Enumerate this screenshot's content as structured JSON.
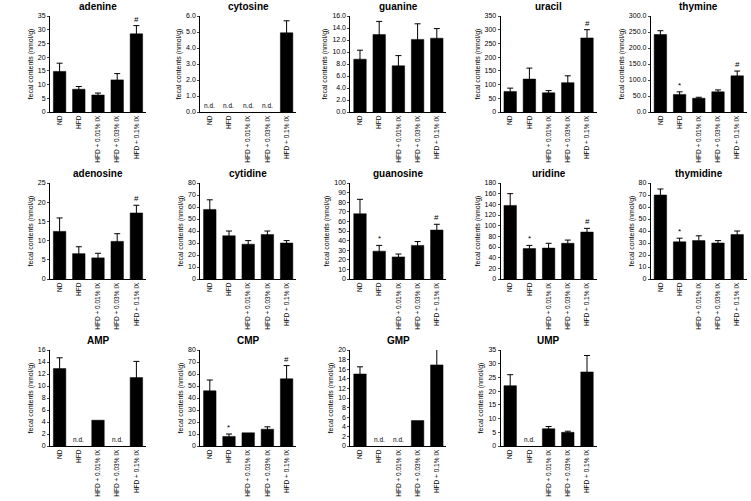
{
  "chart_data": [
    {
      "type": "bar",
      "title": "adenine",
      "y_label": "fecal contents (nmol/g)",
      "categories": [
        "ND",
        "HFD",
        "HFD + 0.01% IX",
        "HFD + 0.03% IX",
        "HFD + 0.1% IX"
      ],
      "values": [
        14.8,
        8.3,
        6.2,
        11.7,
        28.5
      ],
      "errors": [
        3,
        1,
        0.7,
        2.3,
        3
      ],
      "notes": [
        null,
        null,
        null,
        null,
        "#"
      ],
      "color": "#000000",
      "ylim": [
        0,
        35
      ],
      "yticks": [
        0,
        5,
        10,
        15,
        20,
        25,
        30,
        35
      ]
    },
    {
      "type": "bar",
      "title": "cytosine",
      "y_label": "fecal contents (nmol/g)",
      "categories": [
        "ND",
        "HFD",
        "HFD + 0.01% IX",
        "HFD + 0.03% IX",
        "HFD + 0.1% IX"
      ],
      "values": [
        null,
        null,
        null,
        null,
        4.95
      ],
      "errors": [
        null,
        null,
        null,
        null,
        0.75
      ],
      "notes": [
        "n.d.",
        "n.d.",
        "n.d.",
        "n.d.",
        null
      ],
      "color": "#000000",
      "ylim": [
        0,
        6
      ],
      "yticks": [
        {
          "value": 0,
          "label": "0.0"
        },
        {
          "value": 1,
          "label": "1.0"
        },
        {
          "value": 2,
          "label": "2.0"
        },
        {
          "value": 3,
          "label": "3.0"
        },
        {
          "value": 4,
          "label": "4.0"
        },
        {
          "value": 5,
          "label": "5.0"
        },
        {
          "value": 6,
          "label": "6.0"
        }
      ]
    },
    {
      "type": "bar",
      "title": "guanine",
      "y_label": "fecal contents (nmol/g)",
      "categories": [
        "ND",
        "HFD",
        "HFD + 0.01% IX",
        "HFD + 0.03% IX",
        "HFD + 0.1% IX"
      ],
      "values": [
        8.8,
        12.9,
        7.7,
        12.1,
        12.3
      ],
      "errors": [
        1.5,
        2.2,
        1.7,
        2.6,
        1.6
      ],
      "notes": [
        null,
        null,
        null,
        null,
        null
      ],
      "color": "#000000",
      "ylim": [
        0,
        16
      ],
      "yticks": [
        {
          "value": 0,
          "label": "0.0"
        },
        {
          "value": 2,
          "label": "2.0"
        },
        {
          "value": 4,
          "label": "4.0"
        },
        {
          "value": 6,
          "label": "6.0"
        },
        {
          "value": 8,
          "label": "8.0"
        },
        {
          "value": 10,
          "label": "10.0"
        },
        {
          "value": 12,
          "label": "12.0"
        },
        {
          "value": 14,
          "label": "14.0"
        },
        {
          "value": 16,
          "label": "16.0"
        }
      ]
    },
    {
      "type": "bar",
      "title": "uracil",
      "y_label": "fecal contents (nmol/g)",
      "categories": [
        "ND",
        "HFD",
        "HFD + 0.01% IX",
        "HFD + 0.03% IX",
        "HFD + 0.1% IX"
      ],
      "values": [
        75,
        120,
        70,
        107,
        270
      ],
      "errors": [
        12,
        40,
        8,
        25,
        30
      ],
      "notes": [
        null,
        null,
        null,
        null,
        "#"
      ],
      "color": "#000000",
      "ylim": [
        0,
        350
      ],
      "yticks": [
        0,
        50,
        100,
        150,
        200,
        250,
        300,
        350
      ]
    },
    {
      "type": "bar",
      "title": "thymine",
      "y_label": "fecal contents (nmol/g)",
      "categories": [
        "ND",
        "HFD",
        "HFD + 0.01% IX",
        "HFD + 0.03% IX",
        "HFD + 0.1% IX"
      ],
      "values": [
        242,
        55,
        43,
        63,
        113
      ],
      "errors": [
        12,
        8,
        3,
        6,
        15
      ],
      "notes": [
        null,
        "*",
        null,
        null,
        "#"
      ],
      "color": "#000000",
      "ylim": [
        0,
        300
      ],
      "yticks": [
        {
          "value": 0,
          "label": "0.0"
        },
        {
          "value": 50,
          "label": "50.0"
        },
        {
          "value": 100,
          "label": "100.0"
        },
        {
          "value": 150,
          "label": "150.0"
        },
        {
          "value": 200,
          "label": "200.0"
        },
        {
          "value": 250,
          "label": "250.0"
        },
        {
          "value": 300,
          "label": "300.0"
        }
      ]
    },
    {
      "type": "bar",
      "title": "adenosine",
      "y_label": "fecal contents (nmol/g)",
      "categories": [
        "ND",
        "HFD",
        "HFD + 0.01% IX",
        "HFD + 0.03% IX",
        "HFD + 0.1% IX"
      ],
      "values": [
        12.4,
        6.6,
        5.5,
        9.8,
        17.2
      ],
      "errors": [
        3.5,
        1.8,
        1.2,
        2,
        2
      ],
      "notes": [
        null,
        null,
        null,
        null,
        "#"
      ],
      "color": "#000000",
      "ylim": [
        0,
        25
      ],
      "yticks": [
        0,
        5,
        10,
        15,
        20,
        25
      ]
    },
    {
      "type": "bar",
      "title": "cytidine",
      "y_label": "fecal contents (nmol/g)",
      "categories": [
        "ND",
        "HFD",
        "HFD + 0.01% IX",
        "HFD + 0.03% IX",
        "HFD + 0.1% IX"
      ],
      "values": [
        58,
        36,
        29,
        37,
        30
      ],
      "errors": [
        8,
        4,
        3,
        3,
        2
      ],
      "notes": [
        null,
        null,
        null,
        null,
        null
      ],
      "color": "#000000",
      "ylim": [
        0,
        80
      ],
      "yticks": [
        0,
        10,
        20,
        30,
        40,
        50,
        60,
        70,
        80
      ]
    },
    {
      "type": "bar",
      "title": "guanosine",
      "y_label": "fecal contents (nmol/g)",
      "categories": [
        "ND",
        "HFD",
        "HFD + 0.01% IX",
        "HFD + 0.03% IX",
        "HFD + 0.1% IX"
      ],
      "values": [
        68,
        29,
        23,
        35,
        51
      ],
      "errors": [
        15,
        6,
        3,
        4,
        6
      ],
      "notes": [
        null,
        "*",
        null,
        null,
        "#"
      ],
      "color": "#000000",
      "ylim": [
        0,
        100
      ],
      "yticks": [
        0,
        10,
        20,
        30,
        40,
        50,
        60,
        70,
        80,
        90,
        100
      ]
    },
    {
      "type": "bar",
      "title": "uridine",
      "y_label": "fecal contents (nmol/g)",
      "categories": [
        "ND",
        "HFD",
        "HFD + 0.01% IX",
        "HFD + 0.03% IX",
        "HFD + 0.1% IX"
      ],
      "values": [
        138,
        57,
        58,
        67,
        88
      ],
      "errors": [
        22,
        6,
        9,
        6,
        7
      ],
      "notes": [
        null,
        "*",
        null,
        null,
        "#"
      ],
      "color": "#000000",
      "ylim": [
        0,
        180
      ],
      "yticks": [
        0,
        20,
        40,
        60,
        80,
        100,
        120,
        140,
        160,
        180
      ]
    },
    {
      "type": "bar",
      "title": "thymidine",
      "y_label": "fecal contents (nmol/g)",
      "categories": [
        "ND",
        "HFD",
        "HFD + 0.01% IX",
        "HFD + 0.03% IX",
        "HFD + 0.1% IX"
      ],
      "values": [
        70,
        31,
        32,
        30,
        37
      ],
      "errors": [
        5,
        3,
        4,
        2,
        3
      ],
      "notes": [
        null,
        "*",
        null,
        null,
        null
      ],
      "color": "#000000",
      "ylim": [
        0,
        80
      ],
      "yticks": [
        0,
        10,
        20,
        30,
        40,
        50,
        60,
        70,
        80
      ]
    },
    {
      "type": "bar",
      "title": "AMP",
      "y_label": "fecal contents (nmol/g)",
      "categories": [
        "ND",
        "HFD",
        "HFD + 0.01% IX",
        "HFD + 0.03% IX",
        "HFD + 0.1% IX"
      ],
      "values": [
        12.9,
        null,
        4.3,
        null,
        11.4
      ],
      "errors": [
        1.8,
        null,
        null,
        null,
        2.7
      ],
      "notes": [
        null,
        "n.d.",
        null,
        "n.d.",
        null
      ],
      "color": "#000000",
      "ylim": [
        0,
        16
      ],
      "yticks": [
        0,
        2,
        4,
        6,
        8,
        10,
        12,
        14,
        16
      ]
    },
    {
      "type": "bar",
      "title": "CMP",
      "y_label": "fecal contents (nmol/g)",
      "categories": [
        "ND",
        "HFD",
        "HFD + 0.01% IX",
        "HFD + 0.03% IX",
        "HFD + 0.1% IX"
      ],
      "values": [
        46,
        8,
        11,
        14,
        56
      ],
      "errors": [
        9,
        2,
        null,
        2,
        11
      ],
      "notes": [
        null,
        "*",
        null,
        null,
        "#"
      ],
      "color": "#000000",
      "ylim": [
        0,
        80
      ],
      "yticks": [
        0,
        10,
        20,
        30,
        40,
        50,
        60,
        70,
        80
      ]
    },
    {
      "type": "bar",
      "title": "GMP",
      "y_label": "fecal contents (nmol/g)",
      "categories": [
        "ND",
        "HFD",
        "HFD + 0.01% IX",
        "HFD + 0.03% IX",
        "HFD + 0.1% IX"
      ],
      "values": [
        15,
        null,
        null,
        5.3,
        16.9
      ],
      "errors": [
        1.5,
        null,
        null,
        null,
        4
      ],
      "notes": [
        null,
        "n.d.",
        "n.d.",
        null,
        null
      ],
      "color": "#000000",
      "ylim": [
        0,
        20
      ],
      "yticks": [
        0,
        2,
        4,
        6,
        8,
        10,
        12,
        14,
        16,
        18,
        20
      ]
    },
    {
      "type": "bar",
      "title": "UMP",
      "y_label": "fecal contents (nmol/g)",
      "categories": [
        "ND",
        "HFD",
        "HFD + 0.01% IX",
        "HFD + 0.03% IX",
        "HFD + 0.1% IX"
      ],
      "values": [
        22,
        null,
        6.3,
        5,
        27
      ],
      "errors": [
        4,
        null,
        0.8,
        0.4,
        6
      ],
      "notes": [
        null,
        "n.d.",
        null,
        null,
        null
      ],
      "color": "#000000",
      "ylim": [
        0,
        35
      ],
      "yticks": [
        0,
        5,
        10,
        15,
        20,
        25,
        30,
        35
      ]
    }
  ]
}
